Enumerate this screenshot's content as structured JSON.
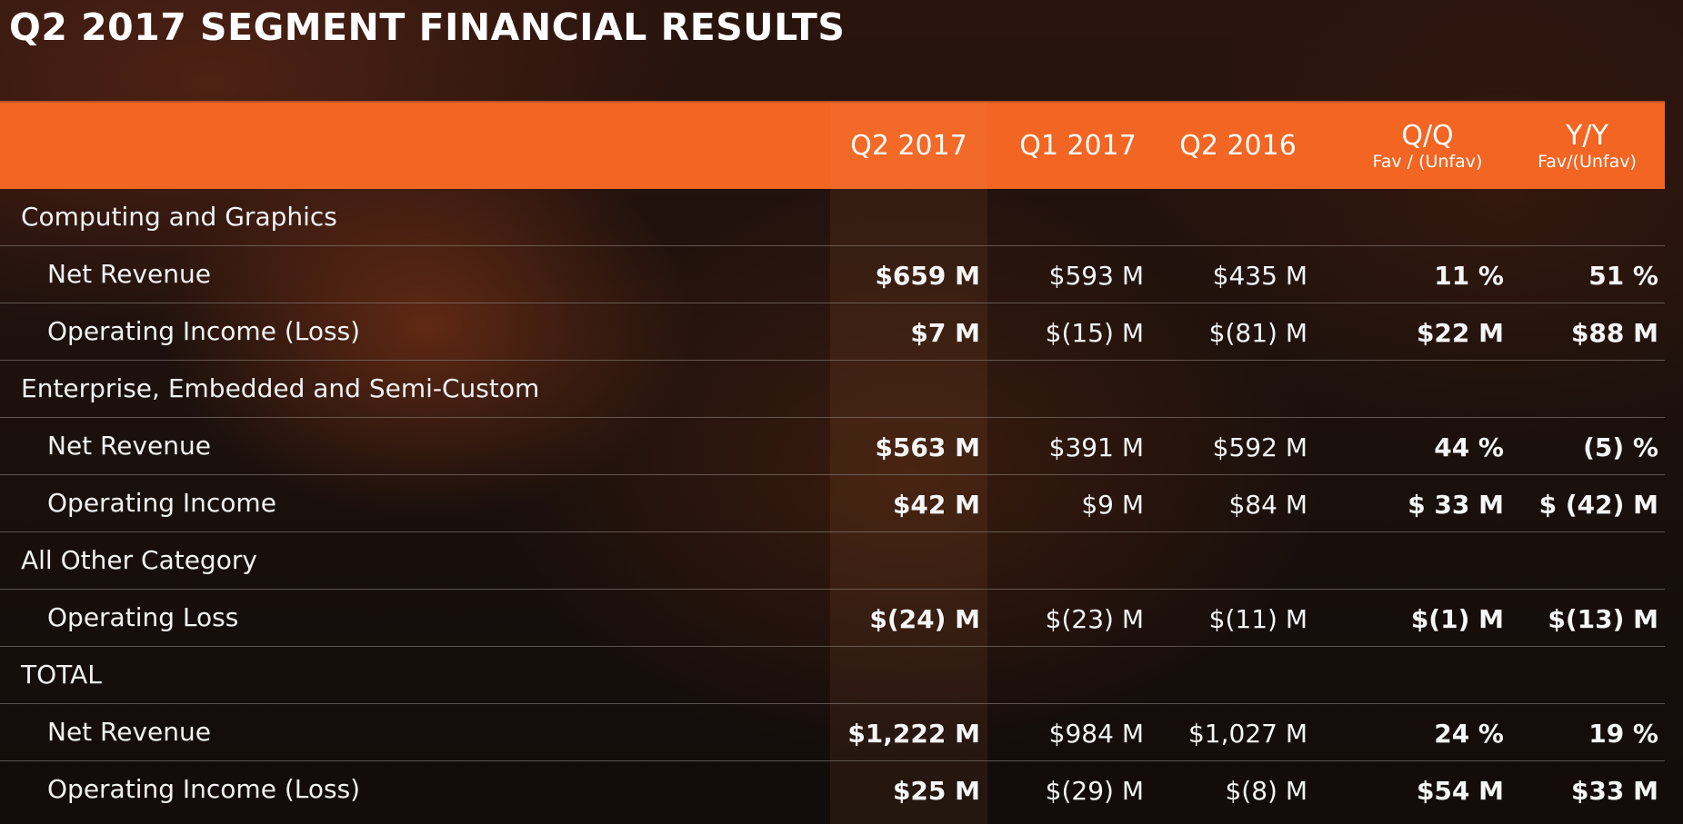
{
  "title": "Q2 2017 SEGMENT FINANCIAL RESULTS",
  "columns": [
    {
      "main": "Q2 2017",
      "sub": ""
    },
    {
      "main": "Q1 2017",
      "sub": ""
    },
    {
      "main": "Q2 2016",
      "sub": ""
    },
    {
      "main": "Q/Q",
      "sub": "Fav / (Unfav)"
    },
    {
      "main": "Y/Y",
      "sub": "Fav/(Unfav)"
    }
  ],
  "sections": [
    {
      "name": "Computing and Graphics",
      "rows": [
        {
          "label": "Net Revenue",
          "values": [
            "$659 M",
            "$593 M",
            "$435 M",
            "11 %",
            "51 %"
          ]
        },
        {
          "label": "Operating Income (Loss)",
          "values": [
            "$7 M",
            "$(15) M",
            "$(81) M",
            "$22 M",
            "$88 M"
          ]
        }
      ]
    },
    {
      "name": "Enterprise, Embedded and Semi-Custom",
      "rows": [
        {
          "label": "Net Revenue",
          "values": [
            "$563 M",
            "$391 M",
            "$592 M",
            "44 %",
            "(5) %"
          ]
        },
        {
          "label": "Operating Income",
          "values": [
            "$42 M",
            "$9 M",
            "$84 M",
            "$ 33 M",
            "$ (42) M"
          ]
        }
      ]
    },
    {
      "name": "All Other Category",
      "rows": [
        {
          "label": "Operating Loss",
          "values": [
            "$(24) M",
            "$(23) M",
            "$(11) M",
            "$(1) M",
            "$(13) M"
          ]
        }
      ]
    },
    {
      "name": "TOTAL",
      "rows": [
        {
          "label": "Net Revenue",
          "values": [
            "$1,222 M",
            "$984 M",
            "$1,027 M",
            "24 %",
            "19 %"
          ]
        },
        {
          "label": "Operating Income (Loss)",
          "values": [
            "$25 M",
            "$(29) M",
            "$(8) M",
            "$54 M",
            "$33 M"
          ]
        }
      ]
    }
  ],
  "colors": {
    "header_orange": "#f26522",
    "background_dark": "#1c110d",
    "text": "#f2f2f2"
  }
}
